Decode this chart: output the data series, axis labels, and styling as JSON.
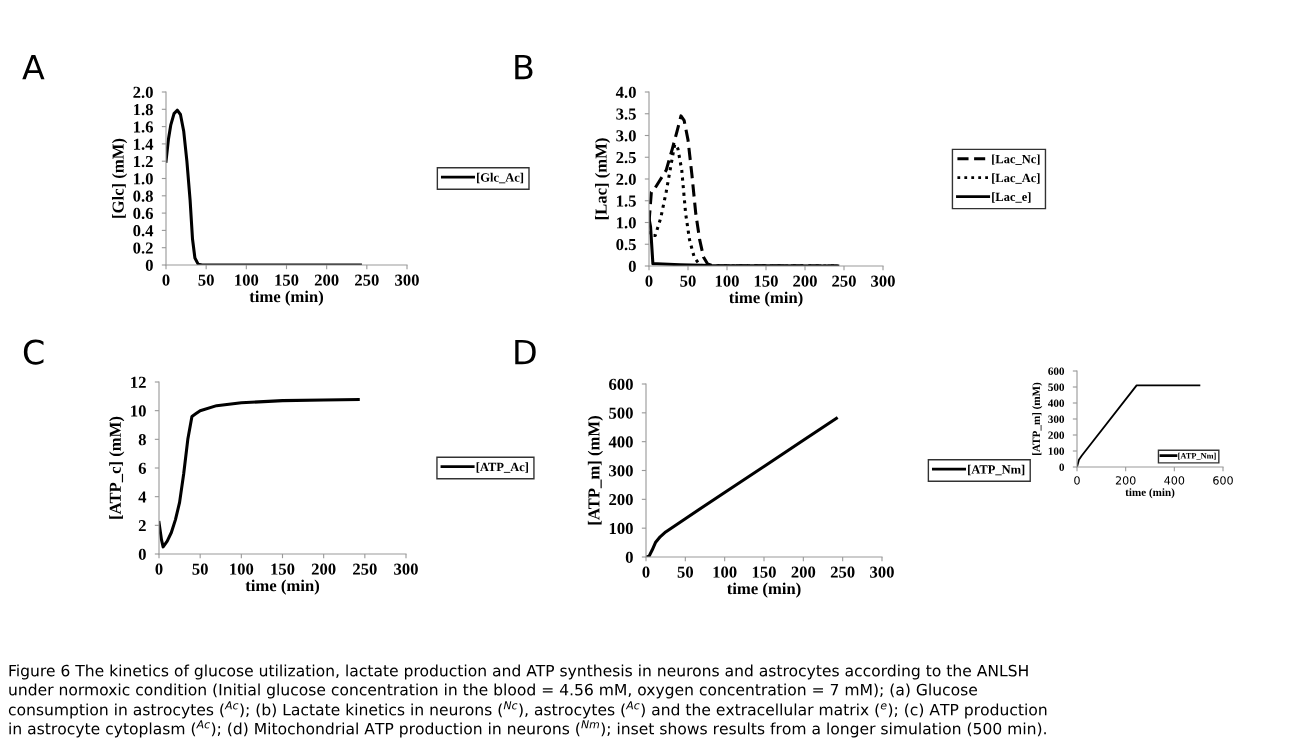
{
  "chart_data": [
    {
      "type": "line",
      "title": "A",
      "xlabel": "time (min)",
      "ylabel": "[Glc] (mM)",
      "xlim": [
        0,
        300
      ],
      "xticks": [
        0,
        50,
        100,
        150,
        200,
        250,
        300
      ],
      "ylim": [
        0,
        2
      ],
      "yticks": [
        0,
        0.2,
        0.4,
        0.6,
        0.8,
        {
          "value": 1,
          "label": "1.0"
        },
        1.2,
        1.4,
        1.6,
        1.8,
        {
          "value": 2,
          "label": "2.0"
        }
      ],
      "legend": "right",
      "grid": false,
      "series": [
        {
          "name": "[Glc_Ac]",
          "color": "#000000",
          "line_style": "solid",
          "x": [
            0,
            3,
            6,
            10,
            14,
            18,
            22,
            26,
            30,
            33,
            36,
            40,
            45,
            242
          ],
          "values": [
            1.2,
            1.45,
            1.62,
            1.75,
            1.79,
            1.74,
            1.55,
            1.2,
            0.75,
            0.3,
            0.08,
            0.01,
            0,
            0
          ]
        }
      ]
    },
    {
      "type": "line",
      "title": "B",
      "xlabel": "time (min)",
      "ylabel": "[Lac] (mM)",
      "xlim": [
        0,
        300
      ],
      "xticks": [
        0,
        50,
        100,
        150,
        200,
        250,
        300
      ],
      "ylim": [
        0,
        4
      ],
      "yticks": [
        0,
        0.5,
        {
          "value": 1,
          "label": "1.0"
        },
        1.5,
        {
          "value": 2,
          "label": "2.0"
        },
        2.5,
        {
          "value": 3,
          "label": "3.0"
        },
        3.5,
        {
          "value": 4,
          "label": "4.0"
        }
      ],
      "legend": "right",
      "grid": false,
      "series": [
        {
          "name": "[Lac_Nc]",
          "color": "#000000",
          "line_style": "dashed",
          "x": [
            0,
            3,
            8,
            15,
            22,
            30,
            36,
            41,
            45,
            50,
            55,
            60,
            65,
            70,
            75,
            80,
            90,
            242
          ],
          "values": [
            1.0,
            1.7,
            1.8,
            2.0,
            2.2,
            2.7,
            3.1,
            3.45,
            3.35,
            2.9,
            2.1,
            1.2,
            0.6,
            0.2,
            0.05,
            0.02,
            0,
            0
          ]
        },
        {
          "name": "[Lac_Ac]",
          "color": "#000000",
          "line_style": "dotted",
          "x": [
            0,
            2,
            8,
            15,
            22,
            28,
            33,
            37,
            42,
            47,
            52,
            58,
            65,
            70,
            242
          ],
          "values": [
            0.8,
            0.7,
            0.7,
            1.1,
            1.7,
            2.3,
            2.8,
            2.7,
            2.2,
            1.2,
            0.6,
            0.2,
            0.03,
            0,
            0
          ]
        },
        {
          "name": "[Lac_e]",
          "color": "#000000",
          "line_style": "solid",
          "x": [
            0,
            2,
            5,
            10,
            40,
            80,
            242
          ],
          "values": [
            1.1,
            0.9,
            0.05,
            0.05,
            0.03,
            0.01,
            0
          ]
        }
      ]
    },
    {
      "type": "line",
      "title": "C",
      "xlabel": "time (min)",
      "ylabel": "[ATP_c] (mM)",
      "xlim": [
        0,
        300
      ],
      "xticks": [
        0,
        50,
        100,
        150,
        200,
        250,
        300
      ],
      "ylim": [
        0,
        12
      ],
      "yticks": [
        0,
        2,
        4,
        6,
        8,
        10,
        12
      ],
      "legend": "right",
      "grid": false,
      "series": [
        {
          "name": "[ATP_Ac]",
          "color": "#000000",
          "line_style": "solid",
          "x": [
            0,
            3,
            5,
            10,
            15,
            20,
            25,
            30,
            35,
            40,
            45,
            50,
            70,
            100,
            150,
            200,
            242
          ],
          "values": [
            2.2,
            1.0,
            0.5,
            0.9,
            1.5,
            2.4,
            3.6,
            5.6,
            8.0,
            9.6,
            9.8,
            10.0,
            10.35,
            10.55,
            10.7,
            10.75,
            10.78
          ]
        }
      ]
    },
    {
      "type": "line",
      "title": "D",
      "xlabel": "time (min)",
      "ylabel": "[ATP_m] (mM)",
      "xlim": [
        0,
        300
      ],
      "xticks": [
        0,
        50,
        100,
        150,
        200,
        250,
        300
      ],
      "ylim": [
        0,
        600
      ],
      "yticks": [
        0,
        100,
        200,
        300,
        400,
        500,
        600
      ],
      "legend": "right",
      "grid": false,
      "series": [
        {
          "name": "[ATP_Nm]",
          "color": "#000000",
          "line_style": "solid",
          "x": [
            0,
            4,
            8,
            12,
            18,
            25,
            50,
            100,
            150,
            200,
            242
          ],
          "values": [
            0,
            3,
            25,
            50,
            70,
            87,
            133,
            224,
            314,
            405,
            481
          ]
        }
      ]
    },
    {
      "type": "line",
      "xlabel": "time (min)",
      "ylabel": "[ATP_m] (mM)",
      "xlim": [
        0,
        600
      ],
      "xticks": [
        0,
        200,
        400,
        600
      ],
      "ylim": [
        0,
        600
      ],
      "yticks": [
        0,
        100,
        200,
        300,
        400,
        500,
        600
      ],
      "legend": "bottom right",
      "grid": false,
      "annotations": [
        "Figure 6 The kinetics of glucose utilization, lactate production and ATP synthesis in neurons and astrocytes according to the ANLSH",
        "under normoxic condition (Initial glucose concentration in the blood = 4.56 mM, oxygen concentration = 7 mM); (a) Glucose",
        "consumption in astrocytes ($^{Ac}$); (b) Lactate kinetics in neurons ($^{Nc}$), astrocytes ($^{Ac}$) and the extracellular matrix ($^{e}$); (c) ATP production",
        "in astrocyte cytoplasm ($^{Ac}$); (d) Mitochondrial ATP production in neurons ($^{Nm}$); inset shows results from a longer simulation (500 min)."
      ],
      "series": [
        {
          "name": "[ATP_Nm]",
          "color": "#000000",
          "line_style": "solid",
          "x": [
            0,
            8,
            20,
            245,
            503
          ],
          "values": [
            0,
            45,
            72,
            510,
            510
          ]
        }
      ]
    }
  ]
}
